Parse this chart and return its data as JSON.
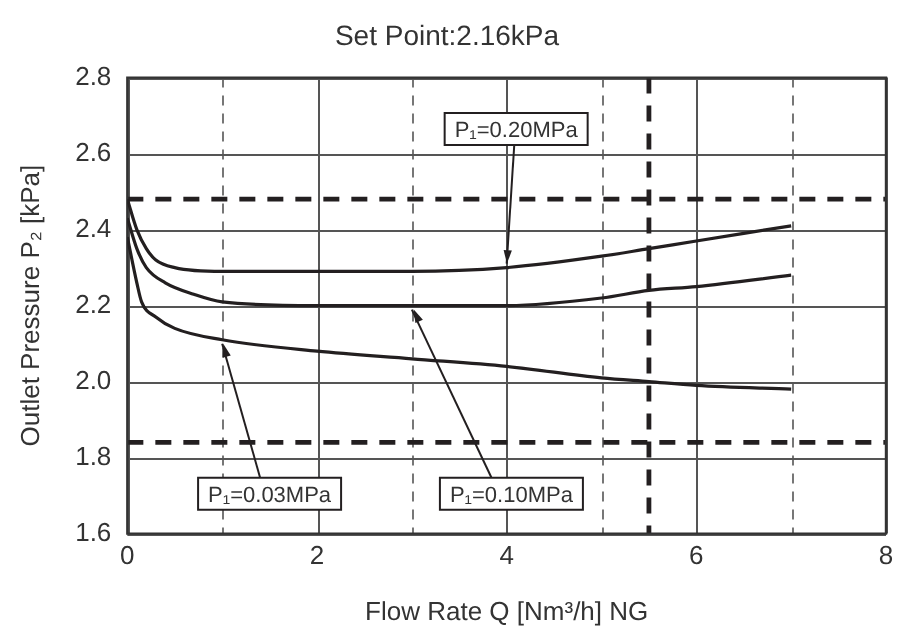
{
  "chart_data": {
    "type": "line",
    "title": "Set Point:2.16kPa",
    "xlabel": "Flow Rate Q [Nm³/h] NG",
    "ylabel": "Outlet Pressure P₂ [kPa]",
    "series": [
      {
        "name": "P₁=0.20MPa",
        "color": "#231f20",
        "x": [
          0,
          0.1,
          0.2,
          0.3,
          0.5,
          1,
          2,
          3,
          4,
          5,
          5.5,
          6,
          7
        ],
        "values": [
          2.48,
          2.4,
          2.35,
          2.32,
          2.3,
          2.29,
          2.29,
          2.29,
          2.3,
          2.33,
          2.35,
          2.37,
          2.41
        ]
      },
      {
        "name": "P₁=0.10MPa",
        "color": "#231f20",
        "x": [
          0,
          0.1,
          0.2,
          0.4,
          0.7,
          1,
          2,
          3,
          4,
          5,
          5.5,
          6,
          7
        ],
        "values": [
          2.43,
          2.35,
          2.3,
          2.26,
          2.23,
          2.21,
          2.2,
          2.2,
          2.2,
          2.22,
          2.24,
          2.25,
          2.28
        ]
      },
      {
        "name": "P₁=0.03MPa",
        "color": "#231f20",
        "x": [
          0,
          0.1,
          0.15,
          0.3,
          0.5,
          1,
          2,
          3,
          4,
          5,
          5.5,
          6,
          7
        ],
        "values": [
          2.38,
          2.26,
          2.21,
          2.17,
          2.14,
          2.11,
          2.08,
          2.06,
          2.04,
          2.01,
          2.0,
          1.99,
          1.98
        ]
      }
    ],
    "xlim": [
      0,
      8
    ],
    "xticks": [
      0,
      {
        "value": 1,
        "label": null
      },
      2,
      {
        "value": 3,
        "label": null
      },
      4,
      {
        "value": 5,
        "label": null
      },
      6,
      {
        "value": 7,
        "label": null
      },
      8
    ],
    "ylim": [
      1.6,
      2.8
    ],
    "yticks": [
      1.6,
      1.8,
      {
        "value": 2,
        "label": "2.0"
      },
      2.2,
      2.4,
      2.6,
      2.8
    ],
    "ref_lines": [
      {
        "axis": "y",
        "value": 2.48,
        "color": "#231f20",
        "line_style": "dashed"
      },
      {
        "axis": "y",
        "value": 1.84,
        "color": "#231f20",
        "line_style": "dashed"
      },
      {
        "axis": "x",
        "value": 5.5,
        "color": "#231f20",
        "line_style": "dashed"
      }
    ],
    "grid": true,
    "legend": false,
    "marker": "none",
    "line_style": "solid"
  }
}
